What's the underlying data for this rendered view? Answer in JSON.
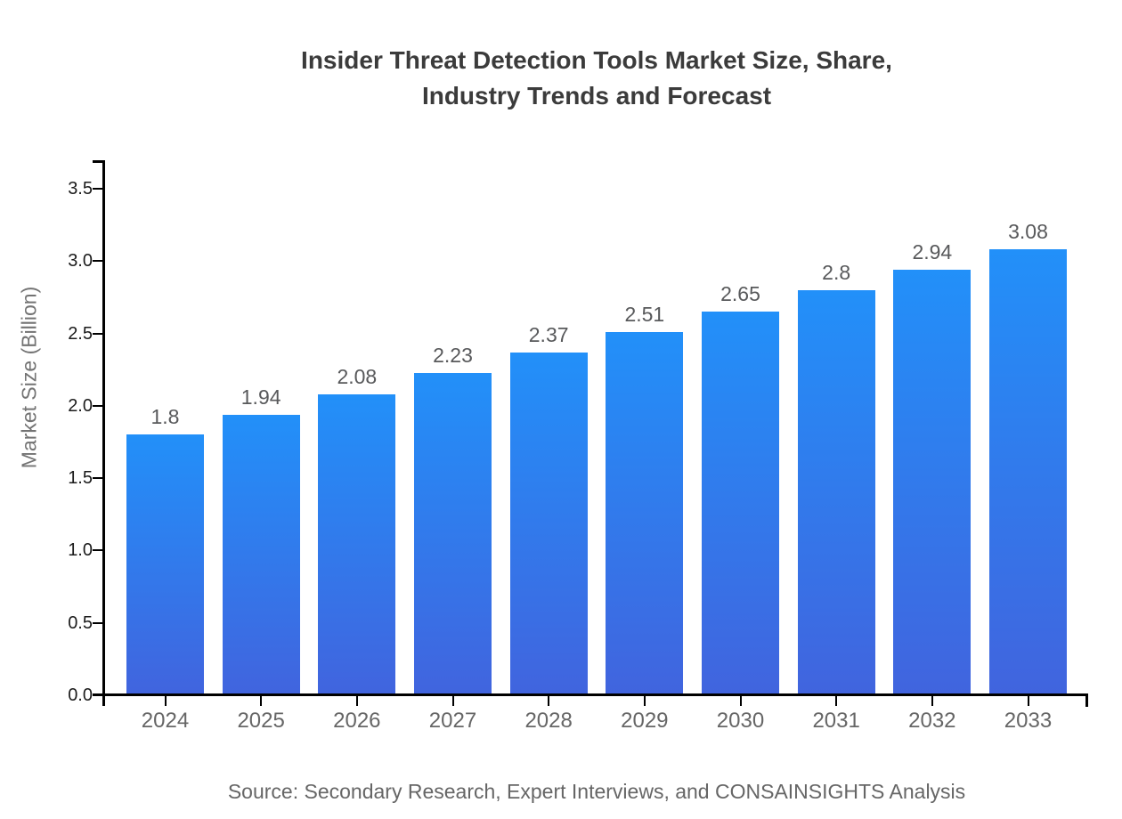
{
  "title": {
    "line1": "Insider Threat Detection Tools Market Size, Share,",
    "line2": "Industry Trends and Forecast"
  },
  "source": "Source: Secondary Research, Expert Interviews, and CONSAINSIGHTS Analysis",
  "chart_data": {
    "type": "bar",
    "categories": [
      "2024",
      "2025",
      "2026",
      "2027",
      "2028",
      "2029",
      "2030",
      "2031",
      "2032",
      "2033"
    ],
    "values": [
      1.8,
      1.94,
      2.08,
      2.23,
      2.37,
      2.51,
      2.65,
      2.8,
      2.94,
      3.08
    ],
    "value_labels": [
      "1.8",
      "1.94",
      "2.08",
      "2.23",
      "2.37",
      "2.51",
      "2.65",
      "2.8",
      "2.94",
      "3.08"
    ],
    "title": "Insider Threat Detection Tools Market Size, Share, Industry Trends and Forecast",
    "xlabel": "",
    "ylabel": "Market Size (Billion)",
    "ylim": [
      0,
      3.685
    ],
    "yticks": [
      0.0,
      0.5,
      1.0,
      1.5,
      2.0,
      2.5,
      3.0,
      3.5
    ],
    "grid": false,
    "legend": false,
    "bar_color_top": "#2290f9",
    "bar_color_bottom": "#4164de",
    "axis_color": "#000000"
  }
}
